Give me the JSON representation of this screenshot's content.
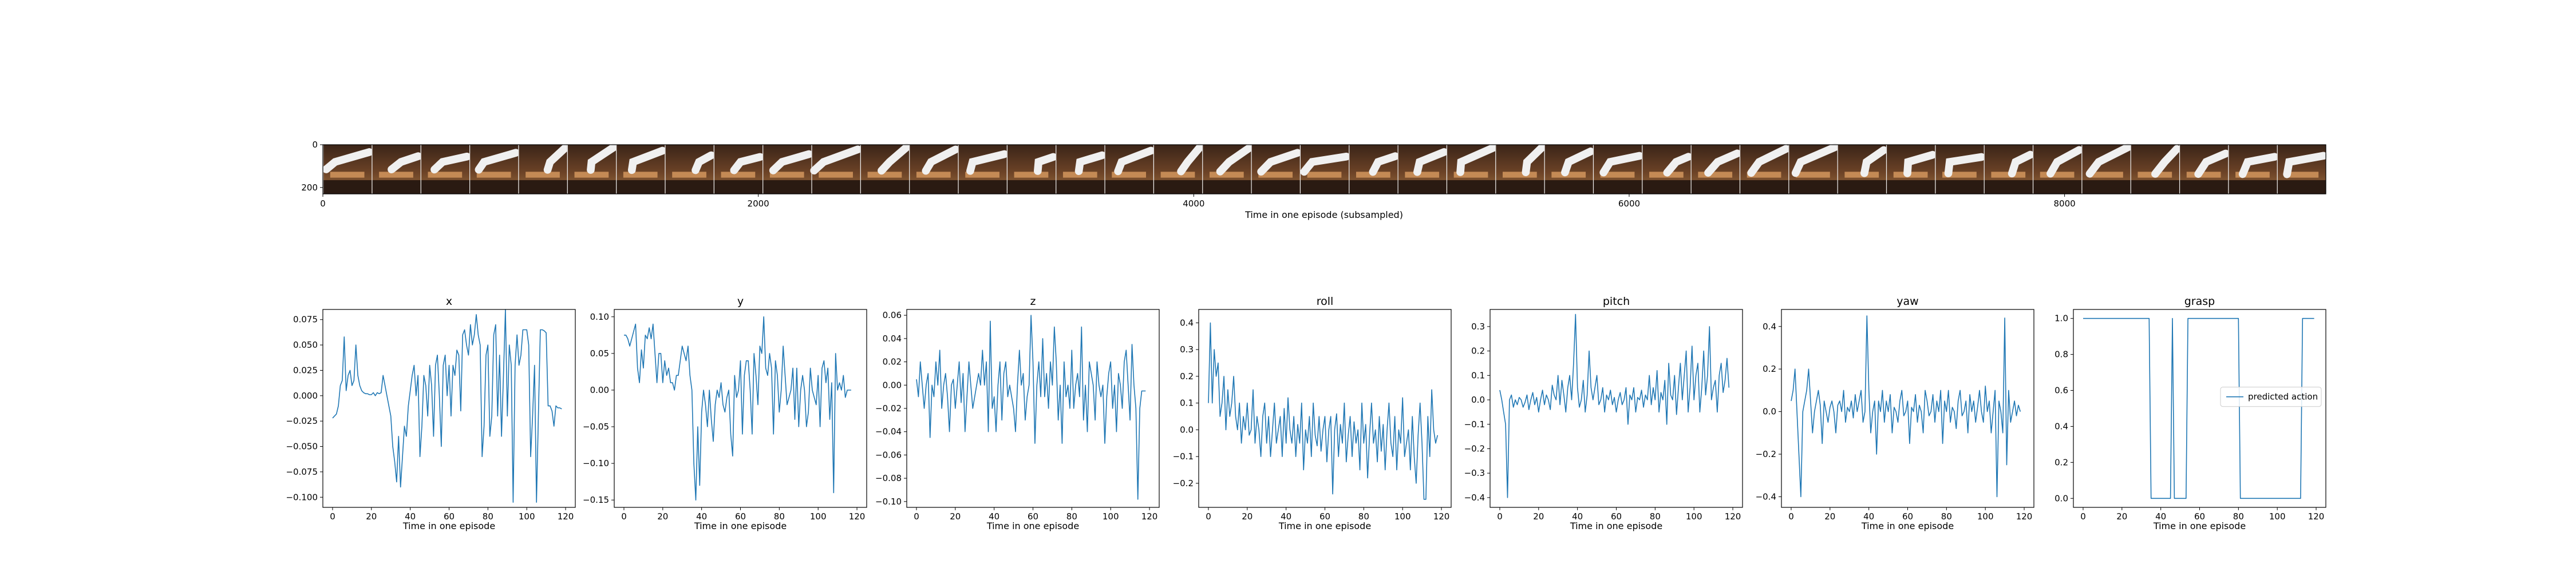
{
  "strip": {
    "xlabel": "Time in one episode (subsampled)",
    "xticks": [
      0,
      2000,
      4000,
      6000,
      8000
    ],
    "yticks": [
      0,
      200
    ],
    "xmax": 9200,
    "ymax": 230,
    "frame_count": 41
  },
  "chart_data": [
    {
      "type": "line",
      "title": "x",
      "xlabel": "Time in one episode",
      "ylabel": "",
      "xlim": [
        -5,
        125
      ],
      "ylim": [
        -0.11,
        0.085
      ],
      "xticks": [
        0,
        20,
        40,
        60,
        80,
        100,
        120
      ],
      "yticks": [
        -0.1,
        -0.075,
        -0.05,
        -0.025,
        0.0,
        0.025,
        0.05,
        0.075
      ],
      "ytick_labels": [
        "−0.100",
        "−0.075",
        "−0.050",
        "−0.025",
        "0.000",
        "0.025",
        "0.050",
        "0.075"
      ],
      "color": "#1f77b4",
      "values": [
        -0.022,
        -0.02,
        -0.018,
        -0.01,
        0.01,
        0.015,
        0.058,
        0.005,
        0.02,
        0.025,
        0.01,
        0.015,
        0.05,
        0.02,
        0.01,
        0.005,
        0.003,
        0.002,
        0.002,
        0.001,
        0.001,
        0.003,
        0.0,
        0.003,
        0.002,
        0.003,
        0.02,
        0.01,
        0.0,
        -0.01,
        -0.02,
        -0.05,
        -0.065,
        -0.085,
        -0.04,
        -0.09,
        -0.06,
        -0.03,
        -0.04,
        -0.01,
        0.005,
        0.02,
        0.03,
        0.0,
        0.02,
        -0.06,
        -0.03,
        0.02,
        0.01,
        -0.02,
        0.03,
        0.01,
        -0.04,
        0.03,
        0.04,
        0.0,
        -0.05,
        0.03,
        0.04,
        0.0,
        0.03,
        -0.02,
        0.03,
        0.02,
        0.045,
        0.04,
        -0.015,
        0.06,
        0.065,
        0.05,
        0.04,
        0.07,
        0.05,
        0.06,
        0.08,
        0.06,
        0.05,
        -0.06,
        -0.03,
        0.04,
        0.05,
        -0.04,
        -0.02,
        0.06,
        0.07,
        -0.02,
        0.04,
        -0.04,
        0.02,
        0.085,
        -0.02,
        0.05,
        0.03,
        -0.105,
        0.03,
        0.06,
        0.03,
        0.04,
        0.065,
        0.065,
        0.065,
        0.05,
        -0.06,
        -0.02,
        0.03,
        -0.105,
        -0.02,
        0.065,
        0.065,
        0.064,
        0.062,
        -0.01,
        -0.01,
        -0.015,
        -0.03,
        -0.01,
        -0.012,
        -0.012,
        -0.013
      ]
    },
    {
      "type": "line",
      "title": "y",
      "xlabel": "Time in one episode",
      "ylabel": "",
      "xlim": [
        -5,
        125
      ],
      "ylim": [
        -0.16,
        0.11
      ],
      "xticks": [
        0,
        20,
        40,
        60,
        80,
        100,
        120
      ],
      "yticks": [
        -0.15,
        -0.1,
        -0.05,
        0.0,
        0.05,
        0.1
      ],
      "ytick_labels": [
        "−0.15",
        "−0.10",
        "−0.05",
        "0.00",
        "0.05",
        "0.10"
      ],
      "color": "#1f77b4",
      "values": [
        0.075,
        0.075,
        0.07,
        0.06,
        0.07,
        0.08,
        0.09,
        0.03,
        0.01,
        0.055,
        0.03,
        0.075,
        0.07,
        0.085,
        0.07,
        0.09,
        0.05,
        0.01,
        0.05,
        0.05,
        0.01,
        0.04,
        0.02,
        0.03,
        0.01,
        0.01,
        0.0,
        0.02,
        0.02,
        0.04,
        0.06,
        0.05,
        0.04,
        0.06,
        0.02,
        0.0,
        -0.1,
        -0.15,
        -0.05,
        -0.13,
        -0.03,
        0.0,
        -0.02,
        -0.05,
        0.0,
        -0.04,
        -0.07,
        -0.02,
        0.0,
        -0.01,
        0.01,
        -0.02,
        -0.03,
        -0.01,
        0.0,
        -0.06,
        -0.09,
        0.02,
        -0.01,
        0.0,
        0.04,
        -0.06,
        0.02,
        0.04,
        0.04,
        0.0,
        -0.06,
        0.05,
        0.02,
        -0.02,
        0.06,
        0.05,
        0.1,
        0.03,
        0.02,
        0.05,
        0.03,
        -0.06,
        0.04,
        0.02,
        -0.03,
        0.0,
        0.06,
        0.02,
        -0.02,
        -0.01,
        0.0,
        0.03,
        -0.04,
        0.03,
        -0.05,
        0.0,
        0.02,
        0.0,
        -0.05,
        -0.03,
        0.03,
        0.0,
        -0.01,
        -0.02,
        0.02,
        -0.05,
        0.03,
        0.04,
        0.01,
        0.03,
        -0.04,
        0.01,
        -0.14,
        0.05,
        0.0,
        0.01,
        0.0,
        0.02,
        -0.01,
        0.0,
        0.0,
        0.0
      ]
    },
    {
      "type": "line",
      "title": "z",
      "xlabel": "Time in one episode",
      "ylabel": "",
      "xlim": [
        -5,
        125
      ],
      "ylim": [
        -0.105,
        0.065
      ],
      "xticks": [
        0,
        20,
        40,
        60,
        80,
        100,
        120
      ],
      "yticks": [
        -0.1,
        -0.08,
        -0.06,
        -0.04,
        -0.02,
        0.0,
        0.02,
        0.04,
        0.06
      ],
      "ytick_labels": [
        "−0.10",
        "−0.08",
        "−0.06",
        "−0.04",
        "−0.02",
        "0.00",
        "0.02",
        "0.04",
        "0.06"
      ],
      "color": "#1f77b4",
      "values": [
        0.005,
        -0.01,
        0.02,
        0.0,
        -0.02,
        0.0,
        0.01,
        -0.045,
        0.0,
        -0.01,
        0.02,
        0.0,
        0.03,
        -0.02,
        0.0,
        0.01,
        -0.01,
        -0.04,
        0.0,
        0.005,
        -0.02,
        0.0,
        0.02,
        -0.015,
        0.01,
        -0.04,
        -0.01,
        0.02,
        0.0,
        -0.02,
        -0.01,
        0.0,
        0.01,
        0.0,
        0.03,
        0.0,
        0.02,
        -0.04,
        0.055,
        -0.02,
        -0.01,
        -0.04,
        0.0,
        0.02,
        -0.03,
        0.01,
        0.02,
        -0.01,
        0.0,
        -0.01,
        -0.02,
        -0.04,
        0.0,
        0.03,
        0.0,
        0.01,
        -0.03,
        -0.01,
        0.0,
        0.06,
        0.02,
        -0.05,
        0.0,
        0.02,
        -0.01,
        0.04,
        -0.01,
        0.01,
        -0.02,
        0.02,
        0.0,
        0.05,
        0.02,
        -0.03,
        0.0,
        -0.05,
        0.02,
        -0.01,
        0.0,
        -0.02,
        0.03,
        -0.02,
        0.0,
        0.01,
        -0.01,
        0.05,
        -0.03,
        0.0,
        -0.04,
        0.02,
        0.01,
        0.0,
        -0.03,
        0.02,
        0.0,
        -0.01,
        0.0,
        -0.05,
        -0.01,
        0.01,
        0.02,
        -0.02,
        0.0,
        -0.04,
        0.01,
        0.0,
        -0.02,
        0.02,
        0.03,
        0.0,
        -0.03,
        0.035,
        0.0,
        -0.02,
        -0.098,
        -0.02,
        -0.005,
        -0.005,
        -0.005
      ]
    },
    {
      "type": "line",
      "title": "roll",
      "xlabel": "Time in one episode",
      "ylabel": "",
      "xlim": [
        -5,
        125
      ],
      "ylim": [
        -0.29,
        0.45
      ],
      "xticks": [
        0,
        20,
        40,
        60,
        80,
        100,
        120
      ],
      "yticks": [
        -0.2,
        -0.1,
        0.0,
        0.1,
        0.2,
        0.3,
        0.4
      ],
      "ytick_labels": [
        "−0.2",
        "−0.1",
        "0.0",
        "0.1",
        "0.2",
        "0.3",
        "0.4"
      ],
      "color": "#1f77b4",
      "values": [
        0.1,
        0.4,
        0.1,
        0.3,
        0.2,
        0.25,
        0.05,
        0.1,
        0.2,
        0.0,
        0.15,
        0.05,
        0.1,
        0.2,
        0.05,
        0.0,
        0.1,
        -0.05,
        0.05,
        0.0,
        0.1,
        -0.02,
        0.0,
        0.15,
        -0.05,
        0.05,
        0.0,
        -0.1,
        0.05,
        0.1,
        -0.05,
        0.05,
        -0.1,
        0.0,
        0.1,
        -0.05,
        0.0,
        0.05,
        -0.1,
        0.08,
        -0.05,
        0.12,
        0.0,
        -0.05,
        0.05,
        -0.1,
        0.02,
        -0.05,
        0.1,
        -0.15,
        0.0,
        -0.05,
        0.05,
        -0.1,
        0.1,
        -0.02,
        -0.06,
        0.05,
        -0.08,
        0.0,
        0.05,
        -0.12,
        0.0,
        0.05,
        -0.24,
        0.0,
        0.06,
        -0.1,
        0.02,
        -0.05,
        0.1,
        -0.12,
        -0.02,
        0.05,
        -0.1,
        0.03,
        -0.05,
        0.0,
        -0.15,
        0.1,
        -0.05,
        0.02,
        -0.18,
        -0.02,
        0.1,
        -0.05,
        0.0,
        -0.12,
        0.05,
        -0.08,
        0.02,
        -0.15,
        0.0,
        0.1,
        -0.05,
        -0.1,
        0.05,
        -0.15,
        0.0,
        -0.05,
        0.12,
        -0.1,
        -0.05,
        0.0,
        -0.15,
        0.05,
        -0.1,
        -0.2,
        -0.02,
        0.1,
        -0.05,
        -0.26,
        -0.26,
        0.05,
        -0.1,
        0.15,
        0.0,
        -0.05,
        -0.02
      ]
    },
    {
      "type": "line",
      "title": "pitch",
      "xlabel": "Time in one episode",
      "ylabel": "",
      "xlim": [
        -5,
        125
      ],
      "ylim": [
        -0.44,
        0.37
      ],
      "xticks": [
        0,
        20,
        40,
        60,
        80,
        100,
        120
      ],
      "yticks": [
        -0.4,
        -0.3,
        -0.2,
        -0.1,
        0.0,
        0.1,
        0.2,
        0.3
      ],
      "ytick_labels": [
        "−0.4",
        "−0.3",
        "−0.2",
        "−0.1",
        "0.0",
        "0.1",
        "0.2",
        "0.3"
      ],
      "color": "#1f77b4",
      "values": [
        0.04,
        0.0,
        -0.05,
        -0.1,
        -0.4,
        0.0,
        0.02,
        -0.03,
        0.0,
        -0.02,
        0.01,
        0.0,
        -0.03,
        -0.01,
        0.02,
        -0.04,
        0.0,
        0.03,
        -0.02,
        0.01,
        -0.05,
        0.0,
        0.04,
        -0.02,
        0.02,
        0.0,
        -0.04,
        0.06,
        0.02,
        0.0,
        0.1,
        -0.02,
        0.08,
        0.02,
        -0.05,
        0.05,
        0.1,
        0.0,
        0.15,
        0.35,
        0.05,
        -0.03,
        0.0,
        0.08,
        -0.05,
        0.02,
        0.2,
        0.05,
        0.0,
        0.05,
        0.1,
        -0.02,
        0.0,
        0.05,
        -0.05,
        0.02,
        0.0,
        0.04,
        -0.02,
        0.01,
        -0.05,
        0.0,
        0.03,
        -0.02,
        0.0,
        0.05,
        -0.1,
        0.02,
        0.0,
        0.05,
        -0.05,
        0.01,
        0.0,
        0.04,
        -0.03,
        0.02,
        0.0,
        0.1,
        -0.02,
        0.05,
        0.0,
        0.12,
        -0.05,
        0.03,
        0.0,
        0.08,
        -0.1,
        0.15,
        0.02,
        0.0,
        0.1,
        -0.06,
        0.05,
        0.15,
        0.0,
        0.1,
        0.2,
        -0.05,
        0.05,
        0.22,
        0.0,
        0.1,
        0.15,
        -0.05,
        0.05,
        0.2,
        0.02,
        0.1,
        0.3,
        0.0,
        0.05,
        0.08,
        -0.05,
        0.1,
        0.15,
        0.03,
        0.08,
        0.17,
        0.05
      ]
    },
    {
      "type": "line",
      "title": "yaw",
      "xlabel": "Time in one episode",
      "ylabel": "",
      "xlim": [
        -5,
        125
      ],
      "ylim": [
        -0.45,
        0.48
      ],
      "xticks": [
        0,
        20,
        40,
        60,
        80,
        100,
        120
      ],
      "yticks": [
        -0.4,
        -0.2,
        0.0,
        0.2,
        0.4
      ],
      "ytick_labels": [
        "−0.4",
        "−0.2",
        "0.0",
        "0.2",
        "0.4"
      ],
      "color": "#1f77b4",
      "values": [
        0.05,
        0.1,
        0.2,
        0.0,
        -0.2,
        -0.4,
        0.0,
        0.05,
        0.1,
        0.2,
        0.05,
        -0.1,
        0.0,
        0.05,
        0.1,
        0.03,
        -0.15,
        0.05,
        0.0,
        -0.05,
        0.02,
        0.05,
        0.0,
        -0.1,
        0.03,
        0.05,
        0.0,
        0.1,
        -0.05,
        0.02,
        0.0,
        0.05,
        -0.03,
        0.08,
        0.0,
        0.05,
        0.1,
        -0.05,
        0.0,
        0.45,
        0.1,
        -0.1,
        0.0,
        0.05,
        -0.2,
        0.05,
        0.0,
        0.1,
        -0.05,
        0.05,
        0.0,
        0.08,
        -0.1,
        0.02,
        0.0,
        -0.05,
        0.05,
        0.1,
        -0.02,
        0.0,
        0.05,
        -0.15,
        0.02,
        0.0,
        0.08,
        -0.05,
        0.03,
        0.0,
        -0.1,
        0.1,
        0.05,
        -0.02,
        0.0,
        0.08,
        -0.05,
        0.05,
        0.0,
        0.1,
        -0.15,
        0.05,
        0.0,
        0.1,
        -0.05,
        0.02,
        0.0,
        -0.08,
        0.05,
        0.1,
        -0.02,
        0.0,
        0.05,
        -0.1,
        0.08,
        0.0,
        0.05,
        -0.05,
        0.02,
        0.1,
        0.0,
        -0.05,
        0.12,
        0.0,
        0.05,
        -0.1,
        0.0,
        0.1,
        -0.4,
        0.05,
        0.0,
        -0.1,
        0.44,
        -0.25,
        0.1,
        -0.05,
        0.0,
        0.05,
        -0.02,
        0.03,
        0.0
      ]
    },
    {
      "type": "line",
      "title": "grasp",
      "xlabel": "Time in one episode",
      "ylabel": "",
      "xlim": [
        -5,
        125
      ],
      "ylim": [
        -0.05,
        1.05
      ],
      "xticks": [
        0,
        20,
        40,
        60,
        80,
        100,
        120
      ],
      "yticks": [
        0.0,
        0.2,
        0.4,
        0.6,
        0.8,
        1.0
      ],
      "ytick_labels": [
        "0.0",
        "0.2",
        "0.4",
        "0.6",
        "0.8",
        "1.0"
      ],
      "color": "#1f77b4",
      "legend": "predicted action",
      "values": [
        1,
        1,
        1,
        1,
        1,
        1,
        1,
        1,
        1,
        1,
        1,
        1,
        1,
        1,
        1,
        1,
        1,
        1,
        1,
        1,
        1,
        1,
        1,
        1,
        1,
        1,
        1,
        1,
        1,
        1,
        1,
        1,
        1,
        1,
        1,
        0,
        0,
        0,
        0,
        0,
        0,
        0,
        0,
        0,
        0,
        0,
        1,
        0,
        0,
        0,
        0,
        0,
        0,
        0,
        1,
        1,
        1,
        1,
        1,
        1,
        1,
        1,
        1,
        1,
        1,
        1,
        1,
        1,
        1,
        1,
        1,
        1,
        1,
        1,
        1,
        1,
        1,
        1,
        1,
        1,
        1,
        0,
        0,
        0,
        0,
        0,
        0,
        0,
        0,
        0,
        0,
        0,
        0,
        0,
        0,
        0,
        0,
        0,
        0,
        0,
        0,
        0,
        0,
        0,
        0,
        0,
        0,
        0,
        0,
        0,
        0,
        0,
        0,
        1,
        1,
        1,
        1,
        1,
        1,
        1
      ]
    }
  ]
}
